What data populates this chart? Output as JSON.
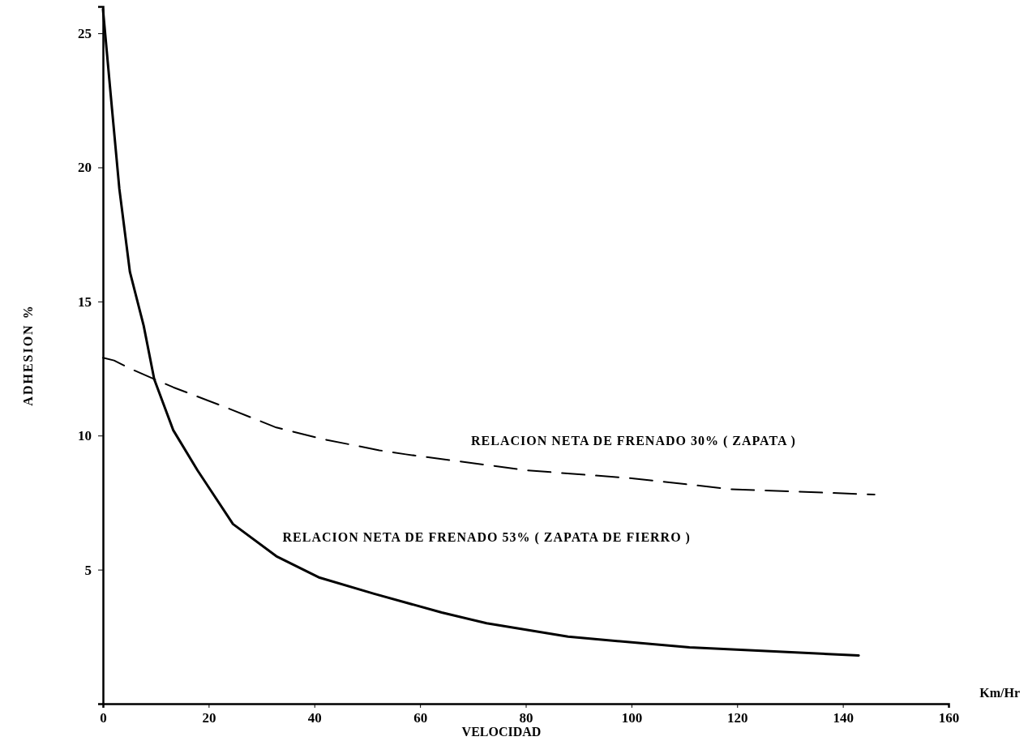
{
  "chart_data": {
    "type": "line",
    "xlabel": "VELOCIDAD",
    "ylabel": "ADHESION %",
    "annotations": [
      "Km/Hr"
    ],
    "xlim": [
      0,
      160
    ],
    "xticks": [
      0,
      20,
      40,
      60,
      80,
      100,
      120,
      140,
      160
    ],
    "ylim": [
      0,
      26
    ],
    "yticks": [
      5,
      10,
      15,
      20,
      25
    ],
    "grid": false,
    "legend": false,
    "marker": "none",
    "series": [
      {
        "name": "RELACION NETA DE FRENADO 30% ( ZAPATA )",
        "color": "#000000",
        "line_style": "dashed",
        "x": [
          0,
          2.1,
          5.1,
          13.3,
          22.6,
          32.8,
          42,
          52.3,
          57.3,
          80.4,
          100.4,
          118.8,
          146
        ],
        "values": [
          12.9,
          12.8,
          12.5,
          11.8,
          11.1,
          10.3,
          9.85,
          9.45,
          9.3,
          8.7,
          8.4,
          8.0,
          7.8
        ]
      },
      {
        "name": "RELACION NETA DE FRENADO 53% ( ZAPATA DE FIERRO )",
        "color": "#000000",
        "line_style": "solid",
        "x": [
          0,
          1.7,
          3.1,
          5.1,
          7.7,
          9.7,
          13.3,
          17.9,
          24.6,
          32.8,
          41,
          51.3,
          64.1,
          72.6,
          88,
          111,
          143
        ],
        "values": [
          25.9,
          22.2,
          19.2,
          16.1,
          14.1,
          12.1,
          10.2,
          8.7,
          6.7,
          5.5,
          4.7,
          4.1,
          3.4,
          3.0,
          2.5,
          2.1,
          1.8
        ]
      }
    ]
  }
}
